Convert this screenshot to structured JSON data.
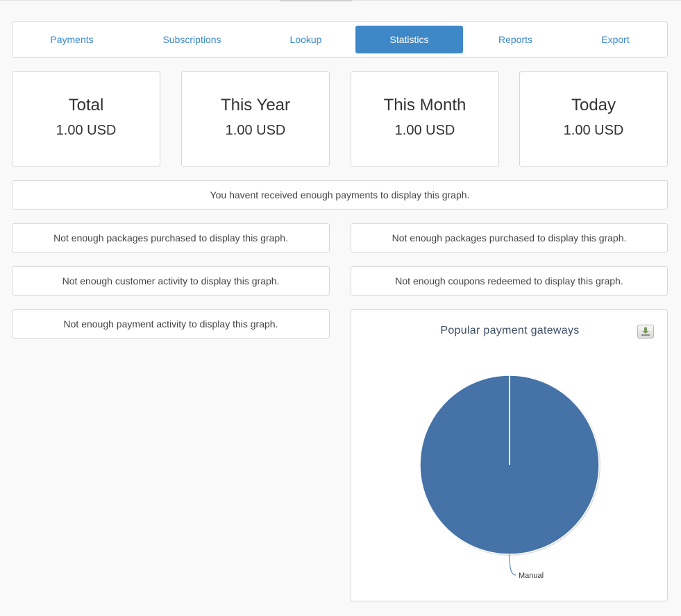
{
  "tabs": [
    {
      "label": "Payments"
    },
    {
      "label": "Subscriptions"
    },
    {
      "label": "Lookup"
    },
    {
      "label": "Statistics",
      "active": true
    },
    {
      "label": "Reports"
    },
    {
      "label": "Export"
    }
  ],
  "stats": [
    {
      "label": "Total",
      "value": "1.00 USD"
    },
    {
      "label": "This Year",
      "value": "1.00 USD"
    },
    {
      "label": "This Month",
      "value": "1.00 USD"
    },
    {
      "label": "Today",
      "value": "1.00 USD"
    }
  ],
  "messages": {
    "payments": "You havent received enough payments to display this graph.",
    "packages_left": "Not enough packages purchased to display this graph.",
    "packages_right": "Not enough packages purchased to display this graph.",
    "customer_activity": "Not enough customer activity to display this graph.",
    "coupons": "Not enough coupons redeemed to display this graph.",
    "payment_activity": "Not enough payment activity to display this graph."
  },
  "chart": {
    "export_icon": "download-icon"
  },
  "chart_data": {
    "type": "pie",
    "title": "Popular payment gateways",
    "slices": [
      {
        "name": "Manual",
        "value": 100,
        "color": "#4572a7"
      }
    ]
  },
  "colors": {
    "accent": "#3f88c8",
    "tab_text": "#3a87c8",
    "pie_fill": "#4572a7"
  }
}
